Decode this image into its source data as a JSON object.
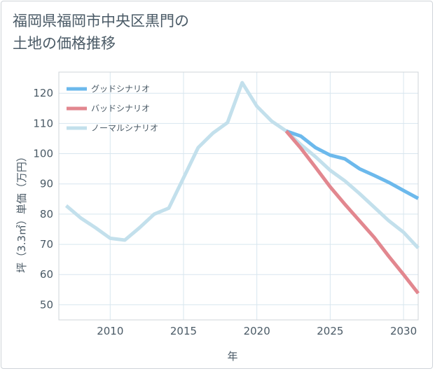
{
  "chart_data": {
    "type": "line",
    "title_lines": [
      "福岡県福岡市中央区黒門の",
      "土地の価格推移"
    ],
    "xlabel": "年",
    "ylabel": "坪（3.3㎡）単価（万円）",
    "xlim": [
      2006.5,
      2031
    ],
    "ylim": [
      45,
      127
    ],
    "xticks": [
      2010,
      2015,
      2020,
      2025,
      2030
    ],
    "yticks": [
      50,
      60,
      70,
      80,
      90,
      100,
      110,
      120
    ],
    "series": [
      {
        "name": "グッドシナリオ",
        "color": "#6cb9ec",
        "x": [
          2022,
          2023,
          2024,
          2025,
          2026,
          2027,
          2028,
          2029,
          2030,
          2031
        ],
        "y": [
          107.5,
          105.8,
          102,
          99.5,
          98.3,
          95,
          92.8,
          90.5,
          87.8,
          85.2
        ]
      },
      {
        "name": "バッドシナリオ",
        "color": "#e2878f",
        "x": [
          2022,
          2023,
          2024,
          2025,
          2026,
          2027,
          2028,
          2029,
          2030,
          2031
        ],
        "y": [
          107.5,
          101.8,
          95.5,
          89,
          83.3,
          77.8,
          72.3,
          66,
          60,
          53.8
        ]
      },
      {
        "name": "ノーマルシナリオ",
        "color": "#c3e0ec",
        "x": [
          2007,
          2008,
          2009,
          2010,
          2011,
          2012,
          2013,
          2014,
          2015,
          2016,
          2017,
          2018,
          2019,
          2020,
          2021,
          2022,
          2023,
          2024,
          2025,
          2026,
          2027,
          2028,
          2029,
          2030,
          2031
        ],
        "y": [
          82.8,
          78.7,
          75.5,
          72,
          71.4,
          75.5,
          80,
          82,
          92,
          102,
          106.8,
          110.3,
          123.5,
          115.7,
          110.8,
          107.5,
          103,
          99,
          94.5,
          91,
          86.8,
          82.3,
          77.8,
          74,
          68.8
        ]
      }
    ]
  }
}
